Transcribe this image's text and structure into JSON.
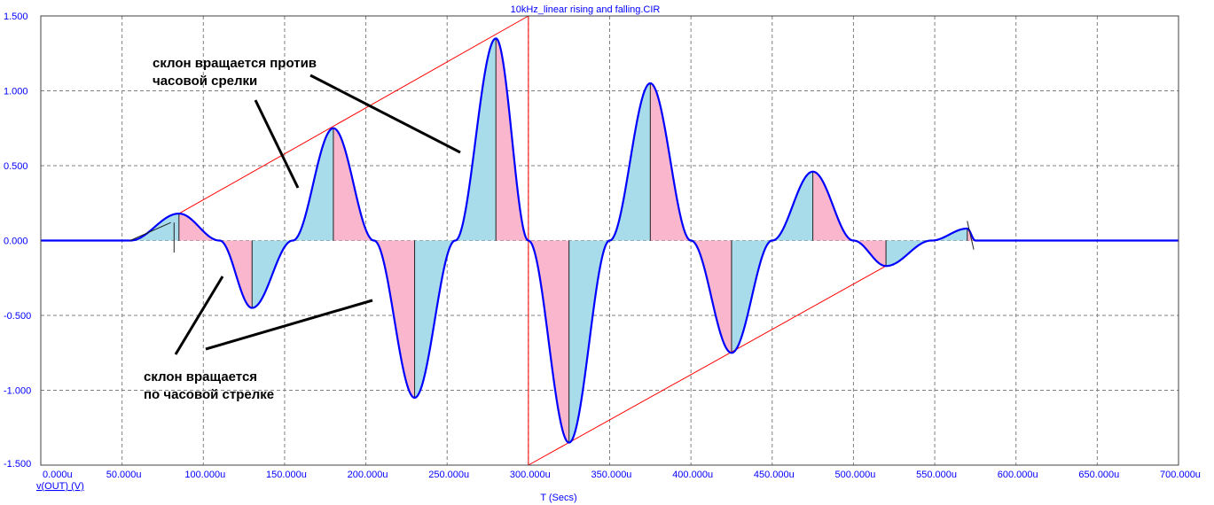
{
  "chart_data": {
    "type": "line",
    "title": "10kHz_linear rising and falling.CIR",
    "xlabel": "T (Secs)",
    "ylabel": "v(OUT) (V)",
    "xlim": [
      0,
      700
    ],
    "ylim": [
      -1.5,
      1.5
    ],
    "x_unit": "u",
    "x_ticks": [
      0,
      50,
      100,
      150,
      200,
      250,
      300,
      350,
      400,
      450,
      500,
      550,
      600,
      650,
      700
    ],
    "x_tick_labels": [
      "0.000u",
      "50.000u",
      "100.000u",
      "150.000u",
      "200.000u",
      "250.000u",
      "300.000u",
      "350.000u",
      "400.000u",
      "450.000u",
      "500.000u",
      "550.000u",
      "600.000u",
      "650.000u",
      "700.000u"
    ],
    "y_ticks": [
      -1.5,
      -1.0,
      -0.5,
      0.0,
      0.5,
      1.0,
      1.5
    ],
    "y_tick_labels": [
      "-1.500",
      "-1.000",
      "-0.500",
      "0.000",
      "0.500",
      "1.000",
      "1.500"
    ],
    "grid": true,
    "series": [
      {
        "name": "v(OUT) (V)",
        "color": "#0000ff",
        "peaks": [
          {
            "x": 85,
            "y": 0.18
          },
          {
            "x": 130,
            "y": -0.45
          },
          {
            "x": 180,
            "y": 0.75
          },
          {
            "x": 230,
            "y": -1.05
          },
          {
            "x": 280,
            "y": 1.35
          },
          {
            "x": 325,
            "y": -1.35
          },
          {
            "x": 375,
            "y": 1.05
          },
          {
            "x": 425,
            "y": -0.75
          },
          {
            "x": 475,
            "y": 0.46
          },
          {
            "x": 520,
            "y": -0.17
          },
          {
            "x": 570,
            "y": 0.08
          }
        ],
        "zero_crossings": [
          110,
          155,
          205,
          255,
          300,
          350,
          400,
          450,
          500,
          548
        ],
        "start": 55,
        "end": 575
      }
    ],
    "envelope": {
      "color": "#ff0000",
      "upper_rising": [
        [
          85,
          0.18
        ],
        [
          300,
          1.5
        ]
      ],
      "lower_falling": [
        [
          300,
          -1.5
        ],
        [
          520,
          -0.17
        ]
      ],
      "vertical_x": 300
    },
    "fills": {
      "slope_ccw_color": "#a8dcea",
      "slope_cw_color": "#f9b6cc"
    },
    "annotations": [
      {
        "lines": [
          "склон  вращается против",
          "часовой срелки"
        ]
      },
      {
        "lines": [
          "склон  вращается",
          "по часовой стрелке"
        ]
      }
    ]
  }
}
